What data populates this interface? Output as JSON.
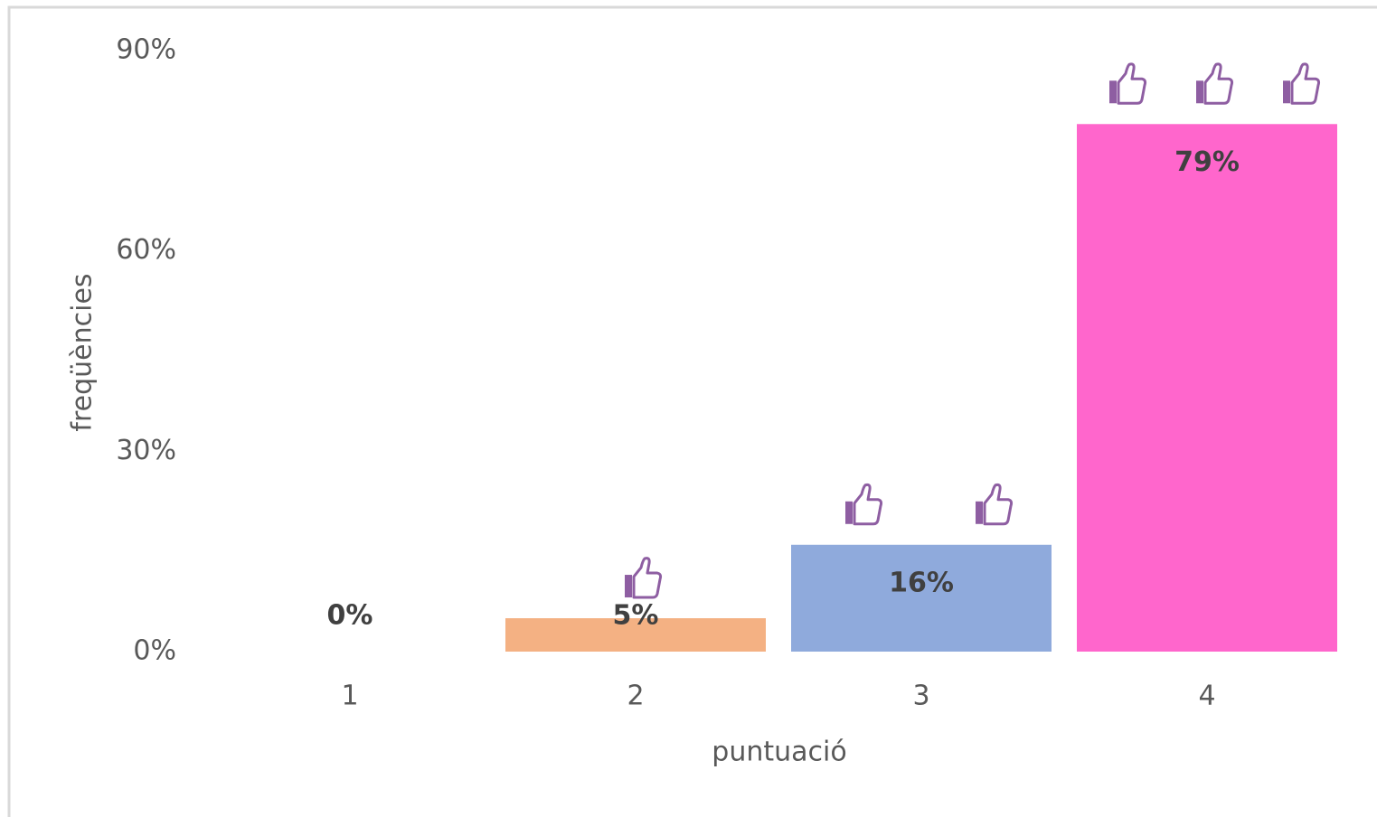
{
  "chart_data": {
    "type": "bar",
    "categories": [
      "1",
      "2",
      "3",
      "4"
    ],
    "values": [
      0,
      5,
      16,
      79
    ],
    "value_labels": [
      "0%",
      "5%",
      "16%",
      "79%"
    ],
    "colors": [
      null,
      "#f4b183",
      "#8faadc",
      "#ff66cc"
    ],
    "xlabel": "puntuació",
    "ylabel": "freqüències",
    "ylim": [
      0,
      90
    ],
    "yticks": [
      {
        "value": 0,
        "label": "0%"
      },
      {
        "value": 30,
        "label": "30%"
      },
      {
        "value": 60,
        "label": "60%"
      },
      {
        "value": 90,
        "label": "90%"
      }
    ],
    "grid": false
  }
}
